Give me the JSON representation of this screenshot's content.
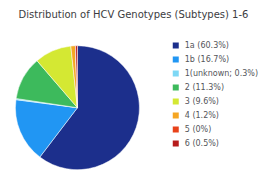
{
  "chart_data": {
    "type": "pie",
    "title": "Distribution of HCV Genotypes (Subtypes) 1-6",
    "categories": [
      "1a (60.3%)",
      "1b (16.7%)",
      "1(unknown; 0.3%)",
      "2 (11.3%)",
      "3 (9.6%)",
      "4 (1.2%)",
      "5 (0%)",
      "6 (0.5%)"
    ],
    "values": [
      60.3,
      16.7,
      0.3,
      11.3,
      9.6,
      1.2,
      0.001,
      0.5
    ],
    "colors": [
      "#1c2f8c",
      "#2196f3",
      "#7dd8f5",
      "#3dba5c",
      "#d4e833",
      "#f5a623",
      "#e8421a",
      "#b71c1c"
    ],
    "legend": "right"
  }
}
